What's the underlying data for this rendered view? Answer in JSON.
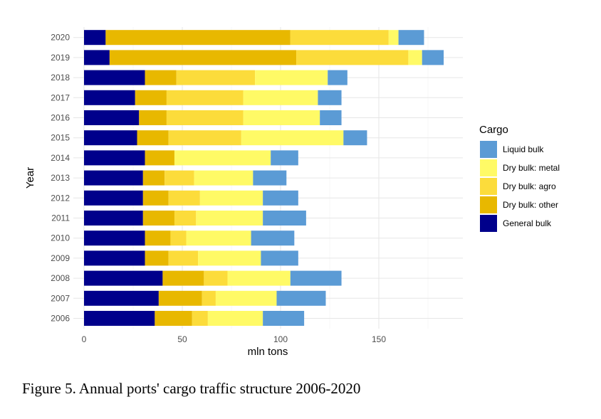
{
  "caption": "Figure 5. Annual ports' cargo traffic structure 2006-2020",
  "chart_data": {
    "type": "bar",
    "orientation": "horizontal",
    "stacked": true,
    "xlabel": "mln tons",
    "ylabel": "Year",
    "xlim": [
      0,
      190
    ],
    "x_ticks": [
      0,
      50,
      100,
      150
    ],
    "grid": true,
    "legend": {
      "title": "Cargo",
      "position": "right"
    },
    "categories": [
      "2006",
      "2007",
      "2008",
      "2009",
      "2010",
      "2011",
      "2012",
      "2013",
      "2014",
      "2015",
      "2016",
      "2017",
      "2018",
      "2019",
      "2020"
    ],
    "series": [
      {
        "name": "General bulk",
        "color": "#00008B",
        "values": [
          36,
          38,
          40,
          31,
          31,
          30,
          30,
          30,
          31,
          27,
          28,
          26,
          31,
          13,
          11
        ]
      },
      {
        "name": "Dry bulk: other",
        "color": "#E8B800",
        "values": [
          19,
          22,
          21,
          12,
          13,
          16,
          13,
          11,
          15,
          16,
          14,
          16,
          16,
          95,
          94
        ]
      },
      {
        "name": "Dry bulk: agro",
        "color": "#FCDC3B",
        "values": [
          8,
          7,
          12,
          15,
          8,
          11,
          16,
          15,
          0,
          37,
          39,
          39,
          40,
          57,
          50
        ]
      },
      {
        "name": "Dry bulk: metal",
        "color": "#FFFA66",
        "values": [
          28,
          31,
          32,
          32,
          33,
          34,
          32,
          30,
          49,
          52,
          39,
          38,
          37,
          7,
          5
        ]
      },
      {
        "name": "Liquid bulk",
        "color": "#5B9BD5",
        "values": [
          21,
          25,
          26,
          19,
          22,
          22,
          18,
          17,
          14,
          12,
          11,
          12,
          10,
          11,
          13
        ]
      }
    ]
  }
}
